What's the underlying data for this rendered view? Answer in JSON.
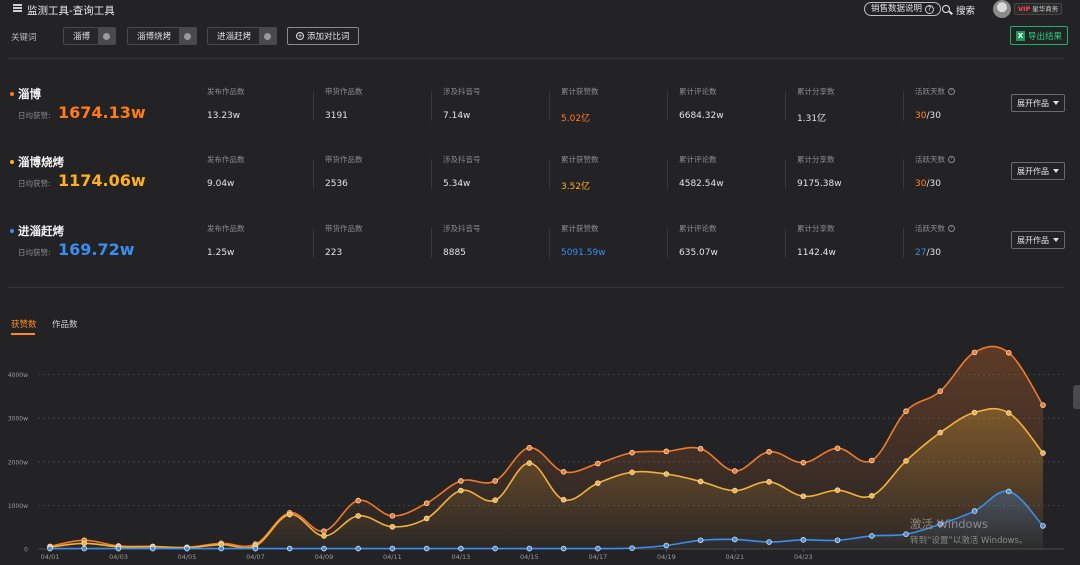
{
  "app": {
    "title": "监测工具-查询工具",
    "explain_label": "销售数据说明",
    "search_label": "搜索",
    "vip_prefix": "VIP",
    "vip_label": "星华商务"
  },
  "keywords_bar": {
    "label": "关键词",
    "chips": [
      "淄博",
      "淄博烧烤",
      "进淄赶烤"
    ],
    "add_label": "添加对比词",
    "export_label": "导出结果"
  },
  "metric_labels": [
    "发布作品数",
    "带货作品数",
    "涉及抖音号",
    "累计获赞数",
    "累计评论数",
    "累计分享数",
    "活跃天数"
  ],
  "daily_label": "日均获赞:",
  "expand_label": "展开作品",
  "rows": [
    {
      "name": "淄博",
      "color": "#ff7a1a",
      "daily": "1674.13w",
      "values": [
        "13.23w",
        "3191",
        "7.14w",
        "5.02亿",
        "6684.32w",
        "1.31亿"
      ],
      "active_days": "30",
      "active_total": "/30"
    },
    {
      "name": "淄博烧烤",
      "color": "#ffb020",
      "daily": "1174.06w",
      "values": [
        "9.04w",
        "2536",
        "5.34w",
        "3.52亿",
        "4582.54w",
        "9175.38w"
      ],
      "active_days": "30",
      "active_total": "/30"
    },
    {
      "name": "进淄赶烤",
      "color": "#3a8ef0",
      "daily": "169.72w",
      "values": [
        "1.25w",
        "223",
        "8885",
        "5091.59w",
        "635.07w",
        "1142.4w"
      ],
      "active_days": "27",
      "active_total": "/30"
    }
  ],
  "tabs": [
    "获赞数",
    "作品数"
  ],
  "chart_data": {
    "type": "line",
    "x": [
      "04/01",
      "04/02",
      "04/03",
      "04/04",
      "04/05",
      "04/06",
      "04/07",
      "04/08",
      "04/09",
      "04/10",
      "04/11",
      "04/12",
      "04/13",
      "04/14",
      "04/15",
      "04/16",
      "04/17",
      "04/18",
      "04/19",
      "04/20",
      "04/21",
      "04/22",
      "04/23",
      "04/24",
      "04/25",
      "04/26",
      "04/27",
      "04/28",
      "04/29",
      "04/30"
    ],
    "xticks": [
      "04/01",
      "04/03",
      "04/05",
      "04/07",
      "04/09",
      "04/11",
      "04/13",
      "04/15",
      "04/17",
      "04/19",
      "04/21",
      "04/23"
    ],
    "yticks": [
      "0",
      "1000w",
      "2000w",
      "3000w",
      "4000w"
    ],
    "ylim": [
      0,
      4000
    ],
    "grid": true,
    "series": [
      {
        "color": "#f2792a",
        "values": [
          60,
          200,
          70,
          60,
          40,
          130,
          110,
          830,
          410,
          1110,
          760,
          1050,
          1560,
          1560,
          2320,
          1770,
          1960,
          2210,
          2240,
          2300,
          1790,
          2230,
          1980,
          2310,
          2030,
          3160,
          3620,
          4510,
          4500,
          3300
        ]
      },
      {
        "color": "#f2b23a",
        "values": [
          40,
          130,
          50,
          50,
          30,
          100,
          70,
          790,
          300,
          760,
          510,
          700,
          1340,
          1120,
          1970,
          1130,
          1510,
          1760,
          1720,
          1550,
          1340,
          1540,
          1210,
          1350,
          1220,
          2020,
          2670,
          3130,
          3120,
          2200
        ]
      },
      {
        "color": "#3a8ef0",
        "values": [
          10,
          10,
          10,
          10,
          10,
          10,
          10,
          10,
          10,
          10,
          10,
          10,
          10,
          10,
          10,
          10,
          10,
          20,
          80,
          200,
          220,
          160,
          210,
          200,
          300,
          340,
          570,
          870,
          1320,
          530
        ]
      }
    ]
  },
  "watermark": {
    "line1": "激活 Windows",
    "line2": "转到“设置”以激活 Windows。"
  }
}
